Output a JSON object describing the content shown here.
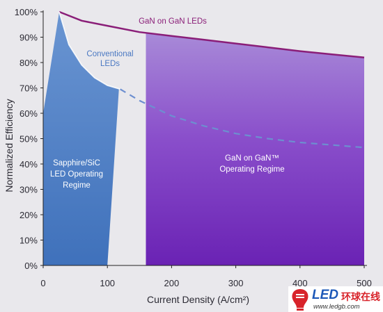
{
  "chart_data": {
    "type": "area",
    "xlabel": "Current Density (A/cm²)",
    "ylabel": "Normalized Efficiency",
    "xlim": [
      0,
      500
    ],
    "ylim": [
      0,
      100
    ],
    "x_ticks": [
      "0",
      "100",
      "200",
      "300",
      "400",
      "500"
    ],
    "y_ticks": [
      "0%",
      "10%",
      "20%",
      "30%",
      "40%",
      "50%",
      "60%",
      "70%",
      "80%",
      "90%",
      "100%"
    ],
    "series": [
      {
        "name": "GaN on GaN LEDs",
        "style": "solid",
        "color": "#8a1e78",
        "x": [
          25,
          60,
          100,
          150,
          200,
          250,
          300,
          350,
          400,
          450,
          500
        ],
        "y": [
          100,
          96.5,
          94.5,
          92,
          90.5,
          89,
          87.5,
          86,
          84.5,
          83.2,
          82
        ]
      },
      {
        "name": "Conventional LEDs",
        "style": "solid",
        "color": "#ffffff",
        "x": [
          25,
          40,
          60,
          80,
          100,
          120
        ],
        "y": [
          100,
          87,
          79,
          74,
          71,
          69.5
        ]
      },
      {
        "name": "",
        "style": "dashed",
        "color": "#6d8fd0",
        "x": [
          120,
          150,
          200,
          250,
          300,
          350,
          400,
          450,
          500
        ],
        "y": [
          69.5,
          65,
          59,
          55,
          52,
          50,
          48.5,
          47.5,
          46.5
        ]
      }
    ],
    "regions": [
      {
        "label": [
          "Sapphire/SiC",
          "LED Operating",
          "Regime"
        ],
        "x_range": [
          0,
          100
        ],
        "color": "#4f81c7"
      },
      {
        "label": [
          "GaN on GaN™",
          "Operating Regime"
        ],
        "x_range": [
          160,
          500
        ],
        "color": "#8445c5"
      }
    ],
    "annotations": {
      "gan_line_label": "GaN on GaN LEDs",
      "conventional_label": [
        "Conventional",
        "LEDs"
      ]
    }
  },
  "watermark": {
    "brand": "LED",
    "brand_cn": "环球在线",
    "url": "www.ledgb.com"
  }
}
